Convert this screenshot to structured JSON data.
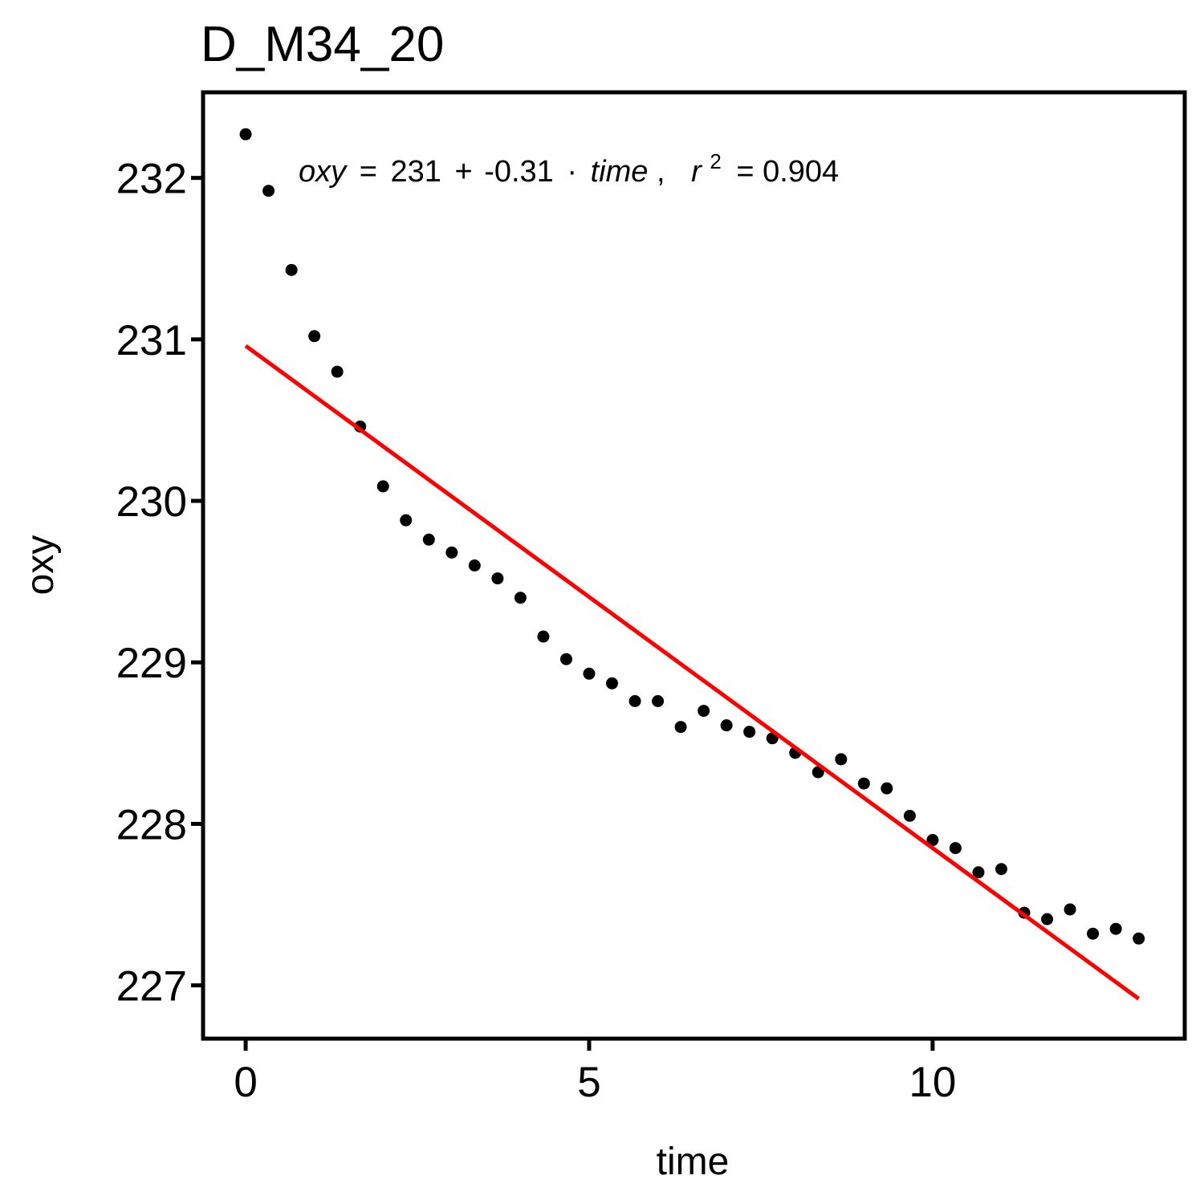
{
  "chart_data": {
    "type": "scatter",
    "title": "D_M34_20",
    "xlabel": "time",
    "ylabel": "oxy",
    "xlim": [
      -0.62,
      13.67
    ],
    "ylim": [
      226.67,
      232.53
    ],
    "x_ticks": [
      0,
      5,
      10
    ],
    "x_tick_labels": [
      "0",
      "5",
      "10"
    ],
    "y_ticks": [
      227,
      228,
      229,
      230,
      231,
      232
    ],
    "y_tick_labels": [
      "227",
      "228",
      "229",
      "230",
      "231",
      "232"
    ],
    "grid": false,
    "series": [
      {
        "name": "observations",
        "color": "#000000",
        "x": [
          0,
          0.333,
          0.667,
          1,
          1.333,
          1.667,
          2,
          2.333,
          2.667,
          3,
          3.333,
          3.667,
          4,
          4.333,
          4.667,
          5,
          5.333,
          5.667,
          6,
          6.333,
          6.667,
          7,
          7.333,
          7.667,
          8,
          8.333,
          8.667,
          9,
          9.333,
          9.667,
          10,
          10.333,
          10.667,
          11,
          11.333,
          11.667,
          12,
          12.333,
          12.667,
          13
        ],
        "y": [
          232.27,
          231.92,
          231.43,
          231.02,
          230.8,
          230.46,
          230.09,
          229.88,
          229.76,
          229.68,
          229.6,
          229.52,
          229.4,
          229.16,
          229.02,
          228.93,
          228.87,
          228.76,
          228.76,
          228.6,
          228.7,
          228.61,
          228.57,
          228.53,
          228.44,
          228.32,
          228.4,
          228.25,
          228.22,
          228.05,
          227.9,
          227.85,
          227.7,
          227.72,
          227.45,
          227.41,
          227.47,
          227.32,
          227.35,
          227.29
        ]
      }
    ],
    "fit_line": {
      "color": "#ff0000",
      "intercept": 230.96,
      "slope": -0.311,
      "x_range": [
        0,
        13
      ]
    },
    "annotation": {
      "lhs": "oxy",
      "eq_sign": "=",
      "intercept_text": "231",
      "plus_sign": "+",
      "slope_text": "-0.31",
      "dot": "·",
      "var": "time",
      "sep": ",",
      "r_symbol": "r",
      "r_exp": "2",
      "r_value_text": "= 0.904"
    }
  }
}
